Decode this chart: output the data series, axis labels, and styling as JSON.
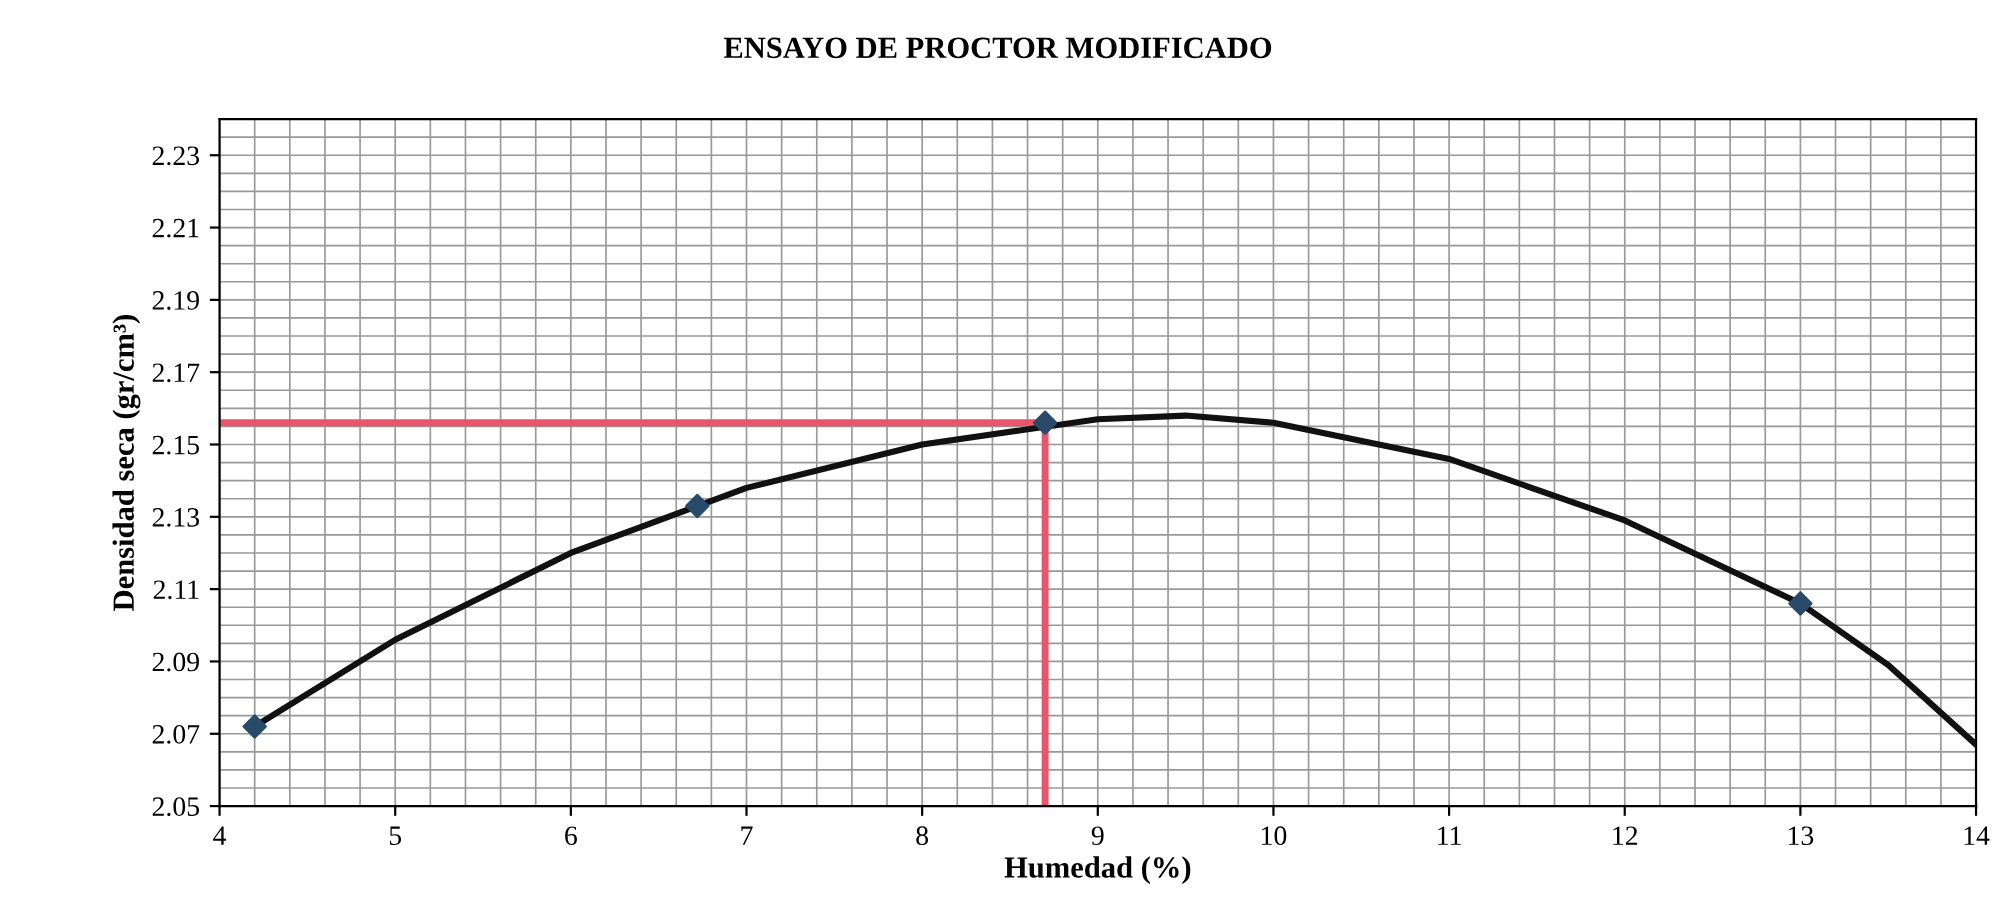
{
  "chart_data": {
    "type": "line",
    "title": "ENSAYO DE PROCTOR MODIFICADO",
    "xlabel": "Humedad (%)",
    "ylabel": "Densidad seca (gr/cm³)",
    "xlim": [
      4,
      14
    ],
    "xticks": [
      4,
      5,
      6,
      7,
      8,
      9,
      10,
      11,
      12,
      13,
      14
    ],
    "ylim": [
      2.05,
      2.24
    ],
    "yticks": [
      2.05,
      2.07,
      2.09,
      2.11,
      2.13,
      2.15,
      2.17,
      2.19,
      2.21,
      2.23
    ],
    "grid": true,
    "legend": false,
    "series": [
      {
        "color": "#111111",
        "x": [
          4.2,
          5,
          6,
          7,
          8,
          9,
          9.5,
          10,
          11,
          12,
          13,
          13.5,
          14
        ],
        "values": [
          2.072,
          2.096,
          2.12,
          2.138,
          2.15,
          2.157,
          2.158,
          2.156,
          2.146,
          2.129,
          2.106,
          2.089,
          2.067
        ]
      },
      {
        "color": "#e8566e",
        "x": [
          4,
          8.7,
          8.7
        ],
        "values": [
          2.156,
          2.156,
          2.05
        ]
      },
      {
        "type": "scatter",
        "marker": "diamond",
        "color": "#2a4a6a",
        "x": [
          4.2,
          6.72,
          8.7,
          13.0
        ],
        "values": [
          2.072,
          2.133,
          2.156,
          2.106
        ]
      }
    ]
  }
}
